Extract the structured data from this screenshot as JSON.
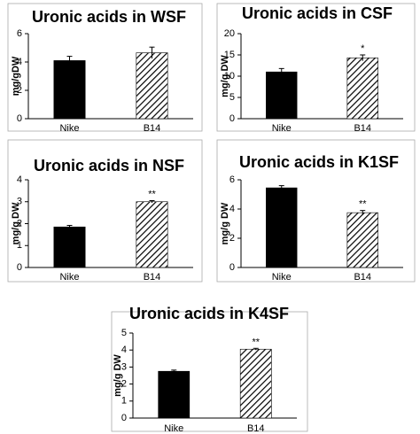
{
  "chart_data": [
    {
      "type": "bar",
      "title": "Uronic acids in WSF",
      "ylabel": "mg/gDW",
      "xlabel": "",
      "categories": [
        "Nike",
        "B14"
      ],
      "values": [
        4.1,
        4.65
      ],
      "errors": [
        0.3,
        0.4
      ],
      "significance": [
        "",
        ""
      ],
      "patterns": [
        "solid",
        "hatched"
      ],
      "ylim": [
        0,
        6
      ],
      "yticks": [
        0,
        2,
        4,
        6
      ],
      "grid": false,
      "legend": "none"
    },
    {
      "type": "bar",
      "title": "Uronic acids in CSF",
      "ylabel": "mg/g DW",
      "xlabel": "",
      "categories": [
        "Nike",
        "B14"
      ],
      "values": [
        11.0,
        14.3
      ],
      "errors": [
        0.8,
        0.7
      ],
      "significance": [
        "",
        "*"
      ],
      "patterns": [
        "solid",
        "hatched"
      ],
      "ylim": [
        0,
        20
      ],
      "yticks": [
        0,
        5,
        10,
        15,
        20
      ],
      "grid": false,
      "legend": "none"
    },
    {
      "type": "bar",
      "title": "Uronic acids in NSF",
      "ylabel": "mg/g DW",
      "xlabel": "",
      "categories": [
        "Nike",
        "B14"
      ],
      "values": [
        1.85,
        3.0
      ],
      "errors": [
        0.07,
        0.05
      ],
      "significance": [
        "",
        "**"
      ],
      "patterns": [
        "solid",
        "hatched"
      ],
      "ylim": [
        0,
        4
      ],
      "yticks": [
        0,
        1,
        2,
        3,
        4
      ],
      "grid": false,
      "legend": "none"
    },
    {
      "type": "bar",
      "title": "Uronic acids in K1SF",
      "ylabel": "mg/g DW",
      "xlabel": "",
      "categories": [
        "Nike",
        "B14"
      ],
      "values": [
        5.45,
        3.75
      ],
      "errors": [
        0.15,
        0.15
      ],
      "significance": [
        "",
        "**"
      ],
      "patterns": [
        "solid",
        "hatched"
      ],
      "ylim": [
        0,
        6
      ],
      "yticks": [
        0,
        2,
        4,
        6
      ],
      "grid": false,
      "legend": "none"
    },
    {
      "type": "bar",
      "title": "Uronic acids in K4SF",
      "ylabel": "mg/g DW",
      "xlabel": "",
      "categories": [
        "Nike",
        "B14"
      ],
      "values": [
        2.75,
        4.05
      ],
      "errors": [
        0.07,
        0.05
      ],
      "significance": [
        "",
        "**"
      ],
      "patterns": [
        "solid",
        "hatched"
      ],
      "ylim": [
        0,
        5
      ],
      "yticks": [
        0,
        1,
        2,
        3,
        4,
        5
      ],
      "grid": false,
      "legend": "none"
    }
  ],
  "colors": {
    "bar_fill": "#000000",
    "hatch_line": "#000000",
    "hatch_background": "#ffffff",
    "frame": "#aaaaaa",
    "axis": "#000000"
  }
}
